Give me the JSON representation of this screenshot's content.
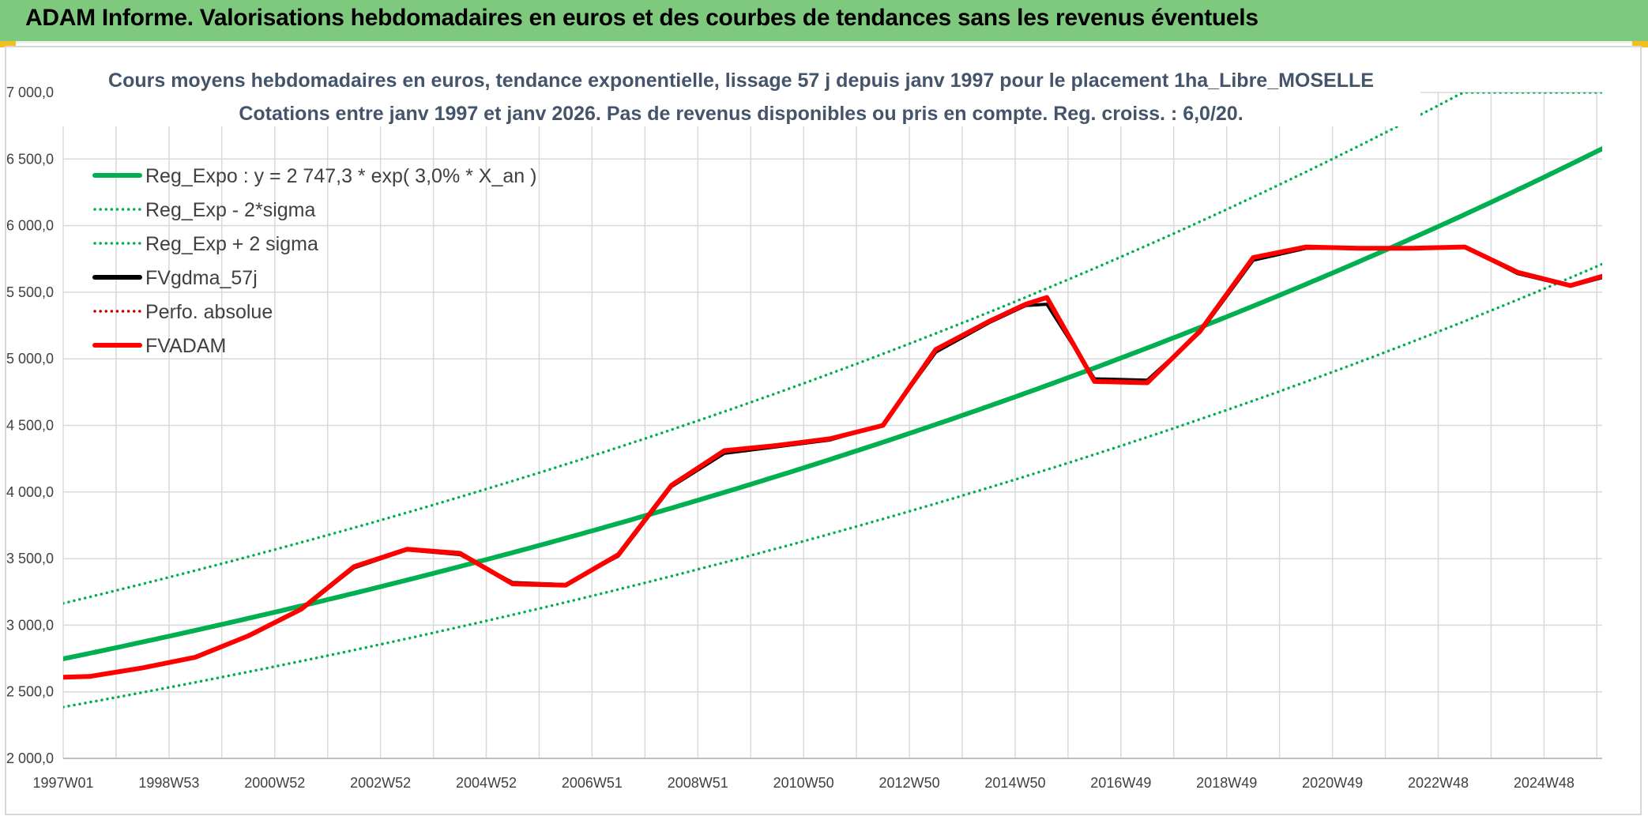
{
  "header": {
    "title": "ADAM Informe. Valorisations hebdomadaires en euros et des courbes de tendances sans les revenus éventuels"
  },
  "colors": {
    "banner": "#7fc97f",
    "reg_expo": "#00b050",
    "fvadam": "#ff0000",
    "fvgdma": "#000000",
    "perfo": "#c00000",
    "grid": "#d9d9d9",
    "title_text": "#44546a"
  },
  "chart_data": {
    "type": "line",
    "title_line1": "Cours moyens hebdomadaires en euros, tendance exponentielle, lissage 57 j depuis janv 1997 pour le placement 1ha_Libre_MOSELLE",
    "title_line2": "Cotations entre janv 1997 et janv 2026. Pas de revenus disponibles ou pris en compte. Reg. croiss. : 6,0/20.",
    "xlabel": "",
    "ylabel": "",
    "ylim": [
      2000,
      7000
    ],
    "xlim": [
      1997.0,
      2026.1
    ],
    "y_ticks": [
      {
        "value": 2000,
        "label": "2 000,0"
      },
      {
        "value": 2500,
        "label": "2 500,0"
      },
      {
        "value": 3000,
        "label": "3 000,0"
      },
      {
        "value": 3500,
        "label": "3 500,0"
      },
      {
        "value": 4000,
        "label": "4 000,0"
      },
      {
        "value": 4500,
        "label": "4 500,0"
      },
      {
        "value": 5000,
        "label": "5 000,0"
      },
      {
        "value": 5500,
        "label": "5 500,0"
      },
      {
        "value": 6000,
        "label": "6 000,0"
      },
      {
        "value": 6500,
        "label": "6 500,0"
      },
      {
        "value": 7000,
        "label": "7 000,0"
      }
    ],
    "x_ticks": [
      {
        "value": 1997.0,
        "label": "1997W01"
      },
      {
        "value": 1999.0,
        "label": "1998W53"
      },
      {
        "value": 2001.0,
        "label": "2000W52"
      },
      {
        "value": 2003.0,
        "label": "2002W52"
      },
      {
        "value": 2005.0,
        "label": "2004W52"
      },
      {
        "value": 2007.0,
        "label": "2006W51"
      },
      {
        "value": 2009.0,
        "label": "2008W51"
      },
      {
        "value": 2011.0,
        "label": "2010W50"
      },
      {
        "value": 2013.0,
        "label": "2012W50"
      },
      {
        "value": 2015.0,
        "label": "2014W50"
      },
      {
        "value": 2017.0,
        "label": "2016W49"
      },
      {
        "value": 2019.0,
        "label": "2018W49"
      },
      {
        "value": 2021.0,
        "label": "2020W49"
      },
      {
        "value": 2023.0,
        "label": "2022W48"
      },
      {
        "value": 2025.0,
        "label": "2024W48"
      }
    ],
    "trend": {
      "a": 2747.3,
      "rate": 0.03,
      "sigma_factor": 1.1517,
      "x_start": 1997.0,
      "x_end": 2026.1
    },
    "legend_position": "top-left",
    "series": [
      {
        "name": "Reg_Expo : y = 2 747,3 * exp( 3,0% *  X_an )",
        "kind": "reg_expo",
        "style": "solid",
        "color": "#00b050",
        "width": 6
      },
      {
        "name": "Reg_Exp - 2*sigma",
        "kind": "reg_minus",
        "style": "dotted",
        "color": "#00b050",
        "width": 3.5
      },
      {
        "name": "Reg_Exp + 2 sigma",
        "kind": "reg_plus",
        "style": "dotted",
        "color": "#00b050",
        "width": 3.5
      },
      {
        "name": "FVgdma_57j",
        "kind": "data",
        "style": "solid",
        "color": "#000000",
        "width": 4,
        "x": [
          1997.0,
          1997.5,
          1998.5,
          1999.5,
          2000.5,
          2001.5,
          2002.5,
          2003.5,
          2004.5,
          2005.5,
          2006.5,
          2007.5,
          2008.5,
          2009.5,
          2010.5,
          2011.5,
          2012.5,
          2013.5,
          2014.5,
          2015.2,
          2015.6,
          2016.5,
          2017.5,
          2018.5,
          2019.5,
          2020.5,
          2021.5,
          2022.5,
          2023.5,
          2024.5,
          2025.5,
          2026.1
        ],
        "y": [
          2610,
          2615,
          2680,
          2760,
          2920,
          3120,
          3430,
          3565,
          3530,
          3320,
          3305,
          3520,
          4040,
          4290,
          4340,
          4390,
          4505,
          5050,
          5270,
          5400,
          5410,
          4850,
          4840,
          5200,
          5740,
          5830,
          5830,
          5830,
          5840,
          5640,
          5545,
          5610
        ]
      },
      {
        "name": "Perfo. absolue",
        "kind": "hidden",
        "style": "dotted",
        "color": "#c00000",
        "width": 3
      },
      {
        "name": "FVADAM",
        "kind": "data",
        "style": "solid",
        "color": "#ff0000",
        "width": 6,
        "x": [
          1997.0,
          1997.5,
          1998.5,
          1999.5,
          2000.5,
          2001.5,
          2002.5,
          2003.5,
          2004.5,
          2005.5,
          2006.5,
          2007.5,
          2008.5,
          2009.5,
          2010.5,
          2011.5,
          2012.5,
          2013.5,
          2014.5,
          2015.2,
          2015.6,
          2016.5,
          2017.5,
          2018.5,
          2019.5,
          2020.5,
          2021.5,
          2022.5,
          2023.5,
          2024.5,
          2025.5,
          2026.1
        ],
        "y": [
          2610,
          2615,
          2680,
          2760,
          2920,
          3120,
          3440,
          3570,
          3540,
          3310,
          3300,
          3530,
          4050,
          4310,
          4350,
          4400,
          4500,
          5070,
          5280,
          5410,
          5460,
          4830,
          4820,
          5210,
          5760,
          5840,
          5830,
          5830,
          5840,
          5650,
          5550,
          5620
        ]
      }
    ]
  }
}
